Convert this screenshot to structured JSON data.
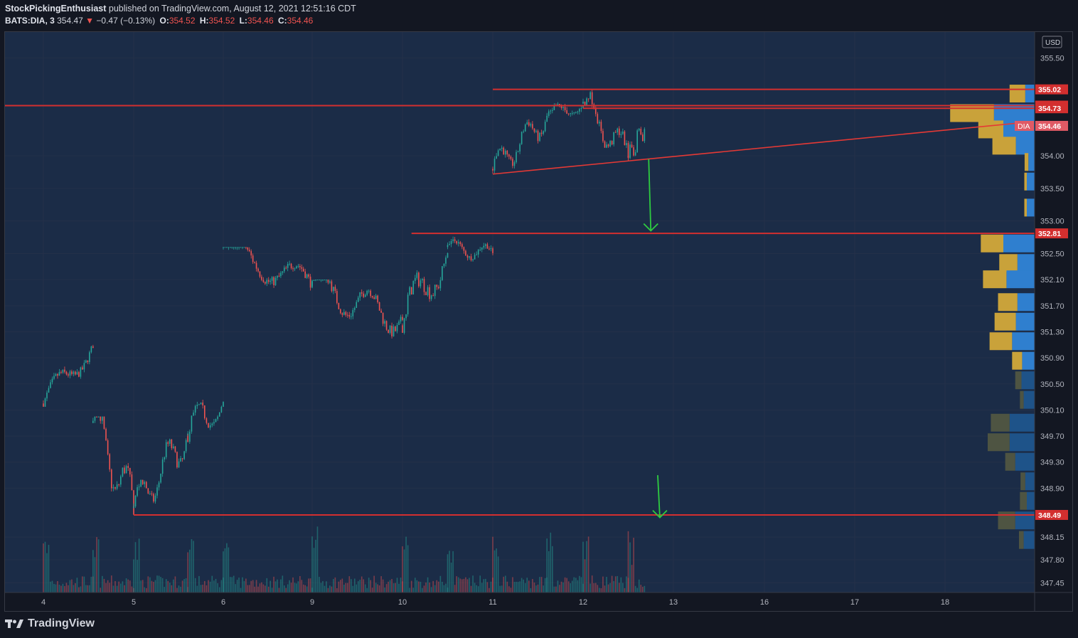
{
  "header": {
    "author": "StockPickingEnthusiast",
    "published": "published on TradingView.com, August 12, 2021 12:51:16 CDT",
    "symbol": "BATS:DIA, 3",
    "last": "354.47",
    "arrow": "▼",
    "change": "−0.47 (−0.13%)",
    "o_label": "O:",
    "o": "354.52",
    "h_label": "H:",
    "h": "354.52",
    "l_label": "L:",
    "l": "354.46",
    "c_label": "C:",
    "c": "354.46"
  },
  "footer": {
    "brand": "TradingView",
    "logo_icon": "tradingview-logo-icon"
  },
  "colors": {
    "background": "#131722",
    "plot_bg": "#1b2c47",
    "grid": "#243049",
    "up": "#26a69a",
    "down": "#ef5350",
    "level_line": "#d32f2f",
    "trend_line": "#e53935",
    "arrow": "#2ecc40",
    "vp_up_hi": "#2f7fcf",
    "vp_down_hi": "#c9a23a",
    "vp_up_lo": "#1e5389",
    "vp_down_lo": "#4e5442",
    "price_label": "#d32f2f",
    "dia_label": "#e05a65"
  },
  "chart_data": {
    "type": "candlestick",
    "symbol": "BATS:DIA",
    "interval": "3",
    "currency": "USD",
    "x_tick_labels": [
      "4",
      "5",
      "6",
      "9",
      "10",
      "11",
      "12",
      "13",
      "16",
      "17",
      "18"
    ],
    "y_tick_labels": [
      "355.50",
      "354.00",
      "353.50",
      "353.00",
      "352.50",
      "352.10",
      "351.70",
      "351.30",
      "350.90",
      "350.50",
      "350.10",
      "349.70",
      "349.30",
      "348.90",
      "348.15",
      "347.80",
      "347.45"
    ],
    "ylim": [
      347.3,
      355.9
    ],
    "levels": [
      {
        "label": "355.02",
        "value": 355.02
      },
      {
        "label": "354.77",
        "value": 354.77
      },
      {
        "label": "354.73",
        "value": 354.73
      },
      {
        "label": "352.81",
        "value": 352.81
      },
      {
        "label": "348.49",
        "value": 348.49
      }
    ],
    "last_price": {
      "label": "DIA",
      "value": 354.46
    },
    "trendline": {
      "from": {
        "session": "11",
        "price": 353.72
      },
      "to": {
        "session": "18",
        "price": 354.5
      }
    },
    "arrows": [
      {
        "session": "12.75",
        "from": 353.95,
        "to": 352.85
      },
      {
        "session": "12.85",
        "from": 349.1,
        "to": 348.45
      }
    ],
    "price_path": [
      {
        "day": "4",
        "open": 350.2,
        "high": 351.2,
        "low": 350.15,
        "close": 351.1
      },
      {
        "day": "4 PM",
        "open": 349.9,
        "high": 350.0,
        "low": 347.9,
        "close": 348.6
      },
      {
        "day": "5",
        "open": 348.6,
        "high": 350.0,
        "low": 348.4,
        "close": 349.7
      },
      {
        "day": "5 PM",
        "open": 349.7,
        "high": 351.0,
        "low": 349.4,
        "close": 350.3
      },
      {
        "day": "6",
        "open": 352.6,
        "high": 352.6,
        "low": 351.3,
        "close": 352.0
      },
      {
        "day": "9",
        "open": 352.0,
        "high": 352.1,
        "low": 350.6,
        "close": 351.5
      },
      {
        "day": "10",
        "open": 351.4,
        "high": 352.9,
        "low": 350.9,
        "close": 352.6
      },
      {
        "day": "10 PM",
        "open": 352.6,
        "high": 352.95,
        "low": 352.3,
        "close": 352.5
      },
      {
        "day": "11",
        "open": 353.8,
        "high": 354.9,
        "low": 353.7,
        "close": 354.6
      },
      {
        "day": "11 PM",
        "open": 354.6,
        "high": 355.05,
        "low": 354.4,
        "close": 354.8
      },
      {
        "day": "12",
        "open": 354.8,
        "high": 355.1,
        "low": 353.75,
        "close": 354.0
      },
      {
        "day": "12 PM",
        "open": 354.0,
        "high": 354.7,
        "low": 353.8,
        "close": 354.46
      }
    ],
    "volume_profile": [
      {
        "price": 354.95,
        "up": 30,
        "down": 50
      },
      {
        "price": 354.65,
        "up": 130,
        "down": 140
      },
      {
        "price": 354.4,
        "up": 100,
        "down": 80
      },
      {
        "price": 354.15,
        "up": 60,
        "down": 75
      },
      {
        "price": 353.9,
        "up": 20,
        "down": 12
      },
      {
        "price": 353.6,
        "up": 25,
        "down": 8
      },
      {
        "price": 353.2,
        "up": 25,
        "down": 8
      },
      {
        "price": 352.65,
        "up": 100,
        "down": 72
      },
      {
        "price": 352.35,
        "up": 55,
        "down": 58
      },
      {
        "price": 352.1,
        "up": 90,
        "down": 75
      },
      {
        "price": 351.75,
        "up": 55,
        "down": 62
      },
      {
        "price": 351.45,
        "up": 60,
        "down": 68
      },
      {
        "price": 351.15,
        "up": 72,
        "down": 72
      },
      {
        "price": 350.85,
        "up": 40,
        "down": 32
      },
      {
        "price": 350.55,
        "up": 42,
        "down": 20
      },
      {
        "price": 350.25,
        "up": 35,
        "down": 12
      },
      {
        "price": 349.9,
        "up": 80,
        "down": 60
      },
      {
        "price": 349.6,
        "up": 80,
        "down": 70
      },
      {
        "price": 349.3,
        "up": 62,
        "down": 32
      },
      {
        "price": 349.0,
        "up": 30,
        "down": 15
      },
      {
        "price": 348.7,
        "up": 25,
        "down": 22
      },
      {
        "price": 348.4,
        "up": 62,
        "down": 55
      },
      {
        "price": 348.1,
        "up": 35,
        "down": 15
      }
    ]
  }
}
